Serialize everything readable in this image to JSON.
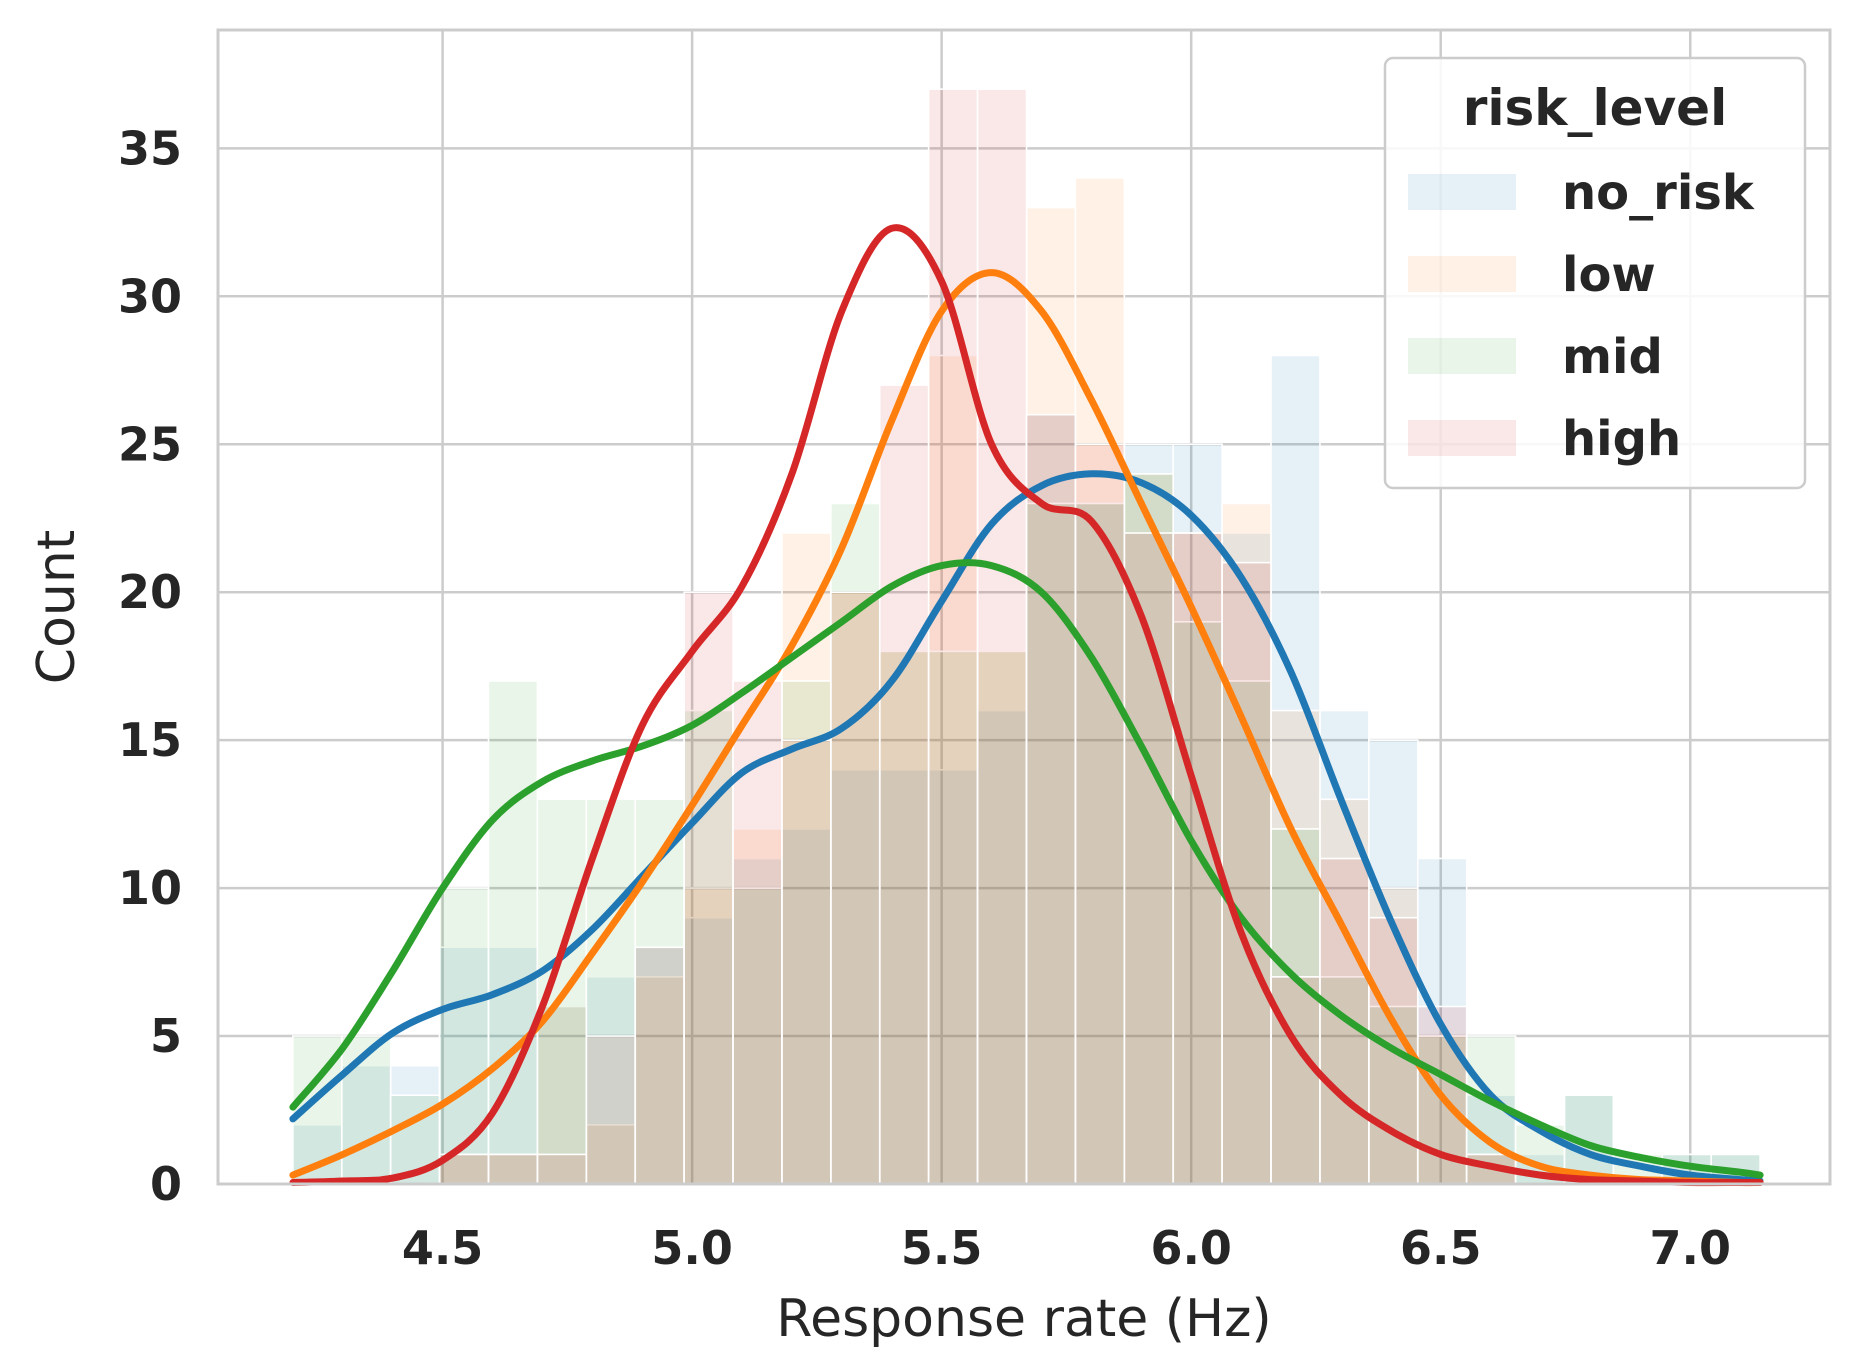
{
  "chart_data": {
    "type": "histogram",
    "title": "",
    "xlabel": "Response rate (Hz)",
    "ylabel": "Count",
    "xlim": [
      4.05,
      7.28
    ],
    "ylim": [
      0,
      39
    ],
    "x_ticks": [
      4.5,
      5.0,
      5.5,
      6.0,
      6.5,
      7.0
    ],
    "x_tick_labels": [
      "4.5",
      "5.0",
      "5.5",
      "6.0",
      "6.5",
      "7.0"
    ],
    "y_ticks": [
      0,
      5,
      10,
      15,
      20,
      25,
      30,
      35
    ],
    "y_tick_labels": [
      "0",
      "5",
      "10",
      "15",
      "20",
      "25",
      "30",
      "35"
    ],
    "grid": true,
    "legend": {
      "title": "risk_level",
      "placement": "top-right"
    },
    "bin_edges": [
      4.2,
      4.298,
      4.396,
      4.494,
      4.592,
      4.69,
      4.788,
      4.886,
      4.984,
      5.082,
      5.18,
      5.278,
      5.376,
      5.474,
      5.572,
      5.67,
      5.768,
      5.866,
      5.964,
      6.062,
      6.16,
      6.258,
      6.356,
      6.454,
      6.552,
      6.65,
      6.748,
      6.846,
      6.944,
      7.042,
      7.14
    ],
    "series": [
      {
        "name": "no_risk",
        "color": "#1f77b4",
        "counts": [
          2,
          4,
          4,
          8,
          8,
          6,
          7,
          8,
          9,
          11,
          12,
          14,
          14,
          14,
          16,
          26,
          23,
          25,
          25,
          22,
          28,
          16,
          15,
          11,
          3,
          1,
          3,
          0,
          1,
          1
        ],
        "kde_x": [
          4.2,
          4.3,
          4.4,
          4.5,
          4.6,
          4.7,
          4.8,
          4.9,
          5.0,
          5.1,
          5.2,
          5.3,
          5.4,
          5.5,
          5.6,
          5.7,
          5.8,
          5.9,
          6.0,
          6.1,
          6.2,
          6.3,
          6.4,
          6.5,
          6.6,
          6.7,
          6.8,
          6.9,
          7.0,
          7.1,
          7.14
        ],
        "kde_y": [
          2.2,
          3.7,
          5.1,
          5.9,
          6.4,
          7.2,
          8.6,
          10.4,
          12.2,
          13.9,
          14.7,
          15.4,
          17.0,
          19.7,
          22.3,
          23.6,
          24.0,
          23.7,
          22.6,
          20.5,
          17.3,
          13.0,
          8.9,
          5.4,
          3.0,
          1.8,
          1.0,
          0.6,
          0.3,
          0.15,
          0.1
        ]
      },
      {
        "name": "low",
        "color": "#ff7f0e",
        "counts": [
          0,
          0,
          0,
          1,
          1,
          6,
          2,
          7,
          10,
          12,
          22,
          20,
          18,
          28,
          18,
          33,
          34,
          24,
          22,
          23,
          16,
          13,
          10,
          5,
          1,
          0,
          0,
          0,
          0,
          0
        ],
        "kde_x": [
          4.2,
          4.3,
          4.4,
          4.5,
          4.6,
          4.7,
          4.8,
          4.9,
          5.0,
          5.1,
          5.2,
          5.3,
          5.4,
          5.5,
          5.6,
          5.7,
          5.8,
          5.9,
          6.0,
          6.1,
          6.2,
          6.3,
          6.4,
          6.5,
          6.6,
          6.7,
          6.8,
          6.9,
          7.0,
          7.1,
          7.14
        ],
        "kde_y": [
          0.3,
          1.0,
          1.8,
          2.7,
          3.9,
          5.5,
          7.8,
          10.2,
          12.8,
          15.5,
          18.2,
          21.5,
          25.8,
          29.5,
          30.8,
          29.5,
          26.5,
          23.0,
          19.5,
          15.8,
          12.0,
          8.8,
          5.6,
          3.0,
          1.4,
          0.6,
          0.3,
          0.15,
          0.1,
          0.05,
          0.05
        ]
      },
      {
        "name": "mid",
        "color": "#2ca02c",
        "counts": [
          5,
          5,
          3,
          10,
          17,
          13,
          13,
          13,
          16,
          10,
          17,
          23,
          18,
          18,
          18,
          23,
          23,
          24,
          19,
          17,
          12,
          7,
          6,
          5,
          5,
          2,
          3,
          1,
          1,
          1
        ],
        "kde_x": [
          4.2,
          4.3,
          4.4,
          4.5,
          4.6,
          4.7,
          4.8,
          4.9,
          5.0,
          5.1,
          5.2,
          5.3,
          5.4,
          5.5,
          5.6,
          5.7,
          5.8,
          5.9,
          6.0,
          6.1,
          6.2,
          6.3,
          6.4,
          6.5,
          6.6,
          6.7,
          6.8,
          6.9,
          7.0,
          7.1,
          7.14
        ],
        "kde_y": [
          2.6,
          4.6,
          7.2,
          10.0,
          12.3,
          13.6,
          14.3,
          14.8,
          15.5,
          16.6,
          17.8,
          19.0,
          20.2,
          20.9,
          20.9,
          20.0,
          17.8,
          14.8,
          11.6,
          9.0,
          7.1,
          5.7,
          4.6,
          3.7,
          2.8,
          2.0,
          1.3,
          0.9,
          0.6,
          0.4,
          0.3
        ]
      },
      {
        "name": "high",
        "color": "#d62728",
        "counts": [
          0,
          0,
          0,
          1,
          1,
          1,
          5,
          8,
          20,
          17,
          15,
          20,
          27,
          37,
          37,
          26,
          25,
          22,
          22,
          21,
          7,
          11,
          9,
          6,
          1,
          0,
          0,
          0,
          0,
          0
        ],
        "kde_x": [
          4.2,
          4.3,
          4.4,
          4.5,
          4.6,
          4.7,
          4.8,
          4.9,
          5.0,
          5.1,
          5.2,
          5.3,
          5.4,
          5.5,
          5.6,
          5.7,
          5.8,
          5.9,
          6.0,
          6.1,
          6.2,
          6.3,
          6.4,
          6.5,
          6.6,
          6.7,
          6.8,
          6.9,
          7.0,
          7.1,
          7.14
        ],
        "kde_y": [
          0.05,
          0.1,
          0.2,
          0.8,
          2.4,
          6.0,
          11.0,
          15.5,
          18.0,
          20.2,
          24.0,
          29.5,
          32.3,
          30.5,
          25.0,
          23.0,
          22.4,
          19.2,
          13.8,
          8.5,
          5.0,
          3.0,
          1.8,
          1.0,
          0.6,
          0.3,
          0.15,
          0.1,
          0.05,
          0.05,
          0.05
        ]
      }
    ]
  }
}
